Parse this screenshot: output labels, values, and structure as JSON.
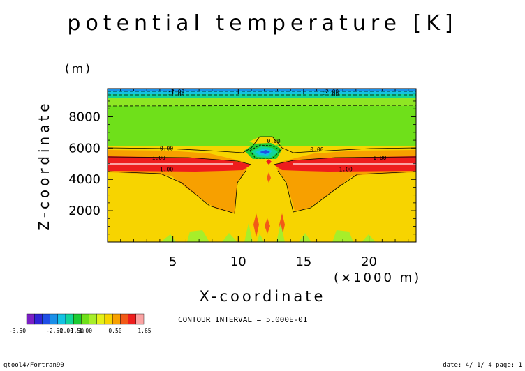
{
  "chart_data": {
    "type": "contour",
    "title": "potential temperature [K]",
    "xlabel": "X-coordinate",
    "x_unit_label": "(×1000 m)",
    "ylabel": "Z-coordinate",
    "y_unit_label": "(m)",
    "xlim": [
      0,
      23.6
    ],
    "ylim": [
      0,
      9800
    ],
    "x_ticks": [
      5,
      10,
      15,
      20
    ],
    "x_tick_labels": [
      "5",
      "10",
      "15",
      "20"
    ],
    "y_ticks": [
      2000,
      4000,
      6000,
      8000
    ],
    "y_tick_labels": [
      "2000",
      "4000",
      "6000",
      "8000"
    ],
    "contour_interval_text": "CONTOUR INTERVAL = 5.000E-01",
    "contour_labels": [
      {
        "text": "-2.00",
        "x": 4.6,
        "y": 9620
      },
      {
        "text": "-1.00",
        "x": 4.6,
        "y": 9450
      },
      {
        "text": "-2.00",
        "x": 16.4,
        "y": 9620
      },
      {
        "text": "-1.00",
        "x": 16.4,
        "y": 9450
      },
      {
        "text": "0.00",
        "x": 4.0,
        "y": 6000
      },
      {
        "text": "0.00",
        "x": 15.5,
        "y": 5930
      },
      {
        "text": "0.00",
        "x": 12.2,
        "y": 6470
      },
      {
        "text": "1.00",
        "x": 3.4,
        "y": 5380
      },
      {
        "text": "1.00",
        "x": 20.3,
        "y": 5380
      },
      {
        "text": "1.00",
        "x": 4.0,
        "y": 4650
      },
      {
        "text": "1.00",
        "x": 17.7,
        "y": 4650
      }
    ],
    "colorbar": {
      "colors": [
        "#7a1fc4",
        "#3024d6",
        "#1f4fe6",
        "#1a8fe8",
        "#14c2e2",
        "#12d59a",
        "#1ecc33",
        "#6fe01a",
        "#a7ee2a",
        "#e4f018",
        "#f7d400",
        "#f7a000",
        "#f25a17",
        "#ee1d1d",
        "#fba3a3"
      ],
      "labels": [
        "-3.50",
        "-2.50",
        "-2.00",
        "-1.50",
        "-1.00",
        "0.50",
        "1.65"
      ]
    },
    "grid": false,
    "legend": "none"
  },
  "footer": {
    "left": "gtool4/Fortran90",
    "right": "date: 4/ 1/ 4 page: 1"
  }
}
